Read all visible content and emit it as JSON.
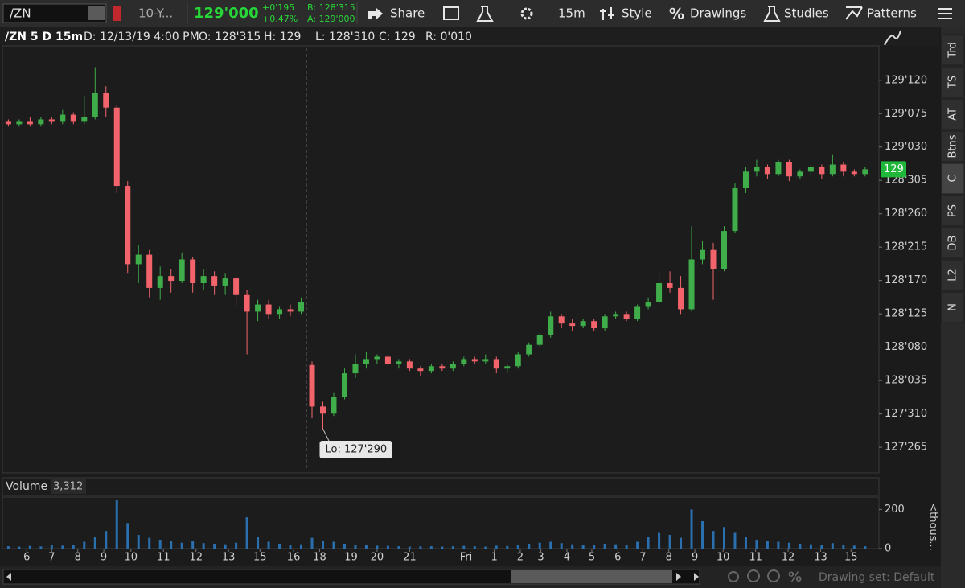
{
  "toolbar": {
    "symbol": "/ZN",
    "description": "10-Y...",
    "last": "129'000",
    "net_change": "+0'195",
    "pct_change": "+0.47%",
    "bid": "B: 128'315",
    "ask": "A: 129'000",
    "share": "Share",
    "period": "15m",
    "style": "Style",
    "drawings": "Drawings",
    "studies": "Studies",
    "patterns": "Patterns"
  },
  "header": {
    "symbol_period": "/ZN 5 D 15m",
    "date": "D: 12/13/19 4:00 PM",
    "open": "O: 128'315",
    "high": "H: 129",
    "low": "L: 128'310",
    "close": "C: 129",
    "range": "R: 0'010"
  },
  "side_tabs": [
    "Trd",
    "TS",
    "AT",
    "Btns",
    "C",
    "PS",
    "DB",
    "L2",
    "N"
  ],
  "footer": {
    "drawing_set": "Drawing set: Default"
  },
  "chart_data": [
    {
      "type": "candlestick",
      "up_color": "#3fae4a",
      "down_color": "#f2636b",
      "xlim": [
        -0.4,
        80.2
      ],
      "ylim": [
        127.72,
        129.52
      ],
      "yticks": [
        {
          "value": 129.375,
          "label": "129'120"
        },
        {
          "value": 129.234375,
          "label": "129'075"
        },
        {
          "value": 129.09375,
          "label": "129'030"
        },
        {
          "value": 128.953125,
          "label": "128'305"
        },
        {
          "value": 128.8125,
          "label": "128'260"
        },
        {
          "value": 128.671875,
          "label": "128'215"
        },
        {
          "value": 128.53125,
          "label": "128'170"
        },
        {
          "value": 128.390625,
          "label": "128'125"
        },
        {
          "value": 128.25,
          "label": "128'080"
        },
        {
          "value": 128.109375,
          "label": "128'035"
        },
        {
          "value": 127.96875,
          "label": "127'310"
        },
        {
          "value": 127.828125,
          "label": "127'265"
        }
      ],
      "open": [
        129.2,
        129.19,
        129.2,
        129.19,
        129.21,
        129.2,
        129.23,
        129.2,
        129.22,
        129.32,
        129.26,
        128.93,
        128.6,
        128.64,
        128.5,
        128.55,
        128.53,
        128.62,
        128.52,
        128.55,
        128.51,
        128.54,
        128.47,
        128.4,
        128.43,
        128.39,
        128.41,
        128.4,
        128.175,
        128.0,
        127.97,
        128.04,
        128.14,
        128.18,
        128.2,
        128.21,
        128.18,
        128.19,
        128.16,
        128.15,
        128.17,
        128.16,
        128.18,
        128.2,
        128.19,
        128.2,
        128.16,
        128.17,
        128.22,
        128.26,
        128.3,
        128.38,
        128.35,
        128.34,
        128.36,
        128.33,
        128.38,
        128.39,
        128.37,
        128.42,
        128.44,
        128.52,
        128.5,
        128.41,
        128.62,
        128.66,
        128.58,
        128.74,
        128.92,
        128.99,
        129.01,
        128.98,
        129.03,
        128.97,
        128.99,
        129.01,
        128.98,
        129.02,
        128.99,
        128.98
      ],
      "high": [
        129.21,
        129.21,
        129.22,
        129.22,
        129.22,
        129.25,
        129.24,
        129.31,
        129.43,
        129.35,
        129.27,
        128.95,
        128.68,
        128.66,
        128.59,
        128.58,
        128.65,
        128.63,
        128.58,
        128.57,
        128.56,
        128.55,
        128.49,
        128.45,
        128.45,
        128.42,
        128.43,
        128.46,
        128.19,
        128.02,
        128.06,
        128.16,
        128.22,
        128.23,
        128.22,
        128.22,
        128.2,
        128.2,
        128.17,
        128.18,
        128.18,
        128.19,
        128.21,
        128.21,
        128.22,
        128.21,
        128.18,
        128.23,
        128.27,
        128.31,
        128.4,
        128.39,
        128.37,
        128.37,
        128.37,
        128.39,
        128.4,
        128.4,
        128.43,
        128.46,
        128.57,
        128.57,
        128.55,
        128.76,
        128.7,
        128.69,
        128.76,
        128.94,
        129.01,
        129.04,
        129.02,
        129.04,
        129.04,
        129.0,
        129.02,
        129.02,
        129.06,
        129.03,
        129.0,
        129.01
      ],
      "low": [
        129.18,
        129.18,
        129.18,
        129.18,
        129.19,
        129.19,
        129.19,
        129.19,
        129.21,
        129.22,
        128.9,
        128.56,
        128.52,
        128.46,
        128.45,
        128.48,
        128.52,
        128.48,
        128.49,
        128.47,
        128.47,
        128.42,
        128.22,
        128.36,
        128.37,
        128.37,
        128.38,
        128.39,
        127.95,
        127.906,
        127.96,
        128.03,
        128.12,
        128.16,
        128.18,
        128.17,
        128.16,
        128.15,
        128.13,
        128.14,
        128.15,
        128.15,
        128.17,
        128.18,
        128.18,
        128.14,
        128.14,
        128.16,
        128.21,
        128.25,
        128.29,
        128.33,
        128.32,
        128.33,
        128.32,
        128.32,
        128.37,
        128.36,
        128.36,
        128.41,
        128.43,
        128.48,
        128.39,
        128.4,
        128.6,
        128.45,
        128.57,
        128.73,
        128.9,
        128.97,
        128.96,
        128.97,
        128.95,
        128.96,
        128.97,
        128.96,
        128.97,
        128.97,
        128.97,
        128.97
      ],
      "close": [
        129.19,
        129.2,
        129.19,
        129.21,
        129.2,
        129.23,
        129.2,
        129.22,
        129.32,
        129.26,
        128.93,
        128.6,
        128.64,
        128.5,
        128.55,
        128.53,
        128.62,
        128.52,
        128.55,
        128.51,
        128.54,
        128.47,
        128.4,
        128.43,
        128.39,
        128.41,
        128.4,
        128.44,
        128.0,
        127.97,
        128.04,
        128.14,
        128.18,
        128.2,
        128.21,
        128.18,
        128.19,
        128.16,
        128.15,
        128.17,
        128.16,
        128.18,
        128.2,
        128.19,
        128.2,
        128.16,
        128.17,
        128.22,
        128.26,
        128.3,
        128.38,
        128.35,
        128.34,
        128.36,
        128.33,
        128.38,
        128.39,
        128.37,
        128.42,
        128.44,
        128.52,
        128.5,
        128.41,
        128.62,
        128.66,
        128.58,
        128.74,
        128.92,
        128.99,
        129.01,
        128.98,
        129.03,
        128.97,
        128.99,
        129.01,
        128.98,
        129.02,
        128.99,
        128.98,
        129.0
      ],
      "annotations": [
        {
          "text": "Lo: 127'290",
          "x": 29,
          "y": 127.90625
        }
      ],
      "last_price": {
        "value": 129,
        "label": "129"
      }
    },
    {
      "type": "bar",
      "title": "Volume",
      "subtitle": "3,312",
      "y_label": "<thous...",
      "color": "#2a6fae",
      "xlim": [
        -0.4,
        80.2
      ],
      "ylim": [
        0,
        255
      ],
      "yticks": [
        0,
        200
      ],
      "values": [
        12,
        10,
        14,
        11,
        18,
        15,
        20,
        35,
        60,
        90,
        250,
        130,
        70,
        55,
        45,
        40,
        30,
        38,
        28,
        25,
        22,
        30,
        160,
        60,
        35,
        25,
        20,
        22,
        55,
        40,
        35,
        25,
        20,
        18,
        15,
        14,
        12,
        10,
        11,
        12,
        10,
        12,
        14,
        12,
        10,
        15,
        13,
        18,
        25,
        30,
        35,
        28,
        22,
        20,
        18,
        25,
        22,
        20,
        35,
        60,
        80,
        70,
        55,
        200,
        140,
        90,
        110,
        80,
        60,
        45,
        40,
        35,
        30,
        25,
        22,
        20,
        28,
        18,
        15,
        12
      ],
      "xticks": [
        {
          "value": 1.7,
          "label": "6"
        },
        {
          "value": 4.0,
          "label": "7"
        },
        {
          "value": 6.4,
          "label": "8"
        },
        {
          "value": 8.8,
          "label": "9"
        },
        {
          "value": 11.3,
          "label": "10"
        },
        {
          "value": 14.3,
          "label": "11"
        },
        {
          "value": 17.3,
          "label": "12"
        },
        {
          "value": 20.3,
          "label": "13"
        },
        {
          "value": 23.2,
          "label": "15"
        },
        {
          "value": 26.3,
          "label": "16"
        },
        {
          "value": 28.7,
          "label": "18"
        },
        {
          "value": 31.6,
          "label": "19"
        },
        {
          "value": 34.0,
          "label": "20"
        },
        {
          "value": 37.0,
          "label": "21"
        },
        {
          "value": 42.2,
          "label": "Fri"
        },
        {
          "value": 44.8,
          "label": "1"
        },
        {
          "value": 47.2,
          "label": "2"
        },
        {
          "value": 49.1,
          "label": "3"
        },
        {
          "value": 51.5,
          "label": "4"
        },
        {
          "value": 53.8,
          "label": "5"
        },
        {
          "value": 56.2,
          "label": "6"
        },
        {
          "value": 58.5,
          "label": "7"
        },
        {
          "value": 60.9,
          "label": "8"
        },
        {
          "value": 63.3,
          "label": "9"
        },
        {
          "value": 65.9,
          "label": "10"
        },
        {
          "value": 68.9,
          "label": "11"
        },
        {
          "value": 71.9,
          "label": "12"
        },
        {
          "value": 74.9,
          "label": "13"
        },
        {
          "value": 77.7,
          "label": "15"
        }
      ]
    }
  ]
}
